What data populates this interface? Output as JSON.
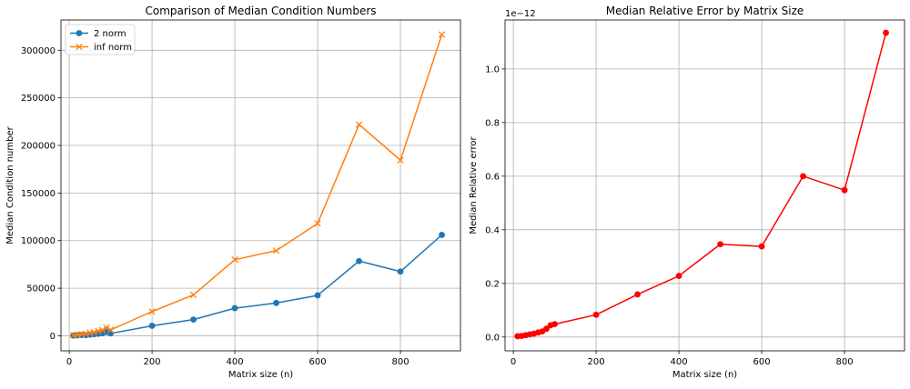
{
  "chart_data": [
    {
      "type": "line",
      "title": "Comparison of Median Condition Numbers",
      "xlabel": "Matrix size (n)",
      "ylabel": "Median Condition number",
      "xlim": [
        -20,
        945
      ],
      "ylim": [
        -15800,
        331800
      ],
      "xticks": [
        0,
        200,
        400,
        600,
        800
      ],
      "yticks": [
        0,
        50000,
        100000,
        150000,
        200000,
        250000,
        300000
      ],
      "ytick_labels": [
        "0",
        "50000",
        "100000",
        "150000",
        "200000",
        "250000",
        "300000"
      ],
      "grid": true,
      "legend": "top-left",
      "x": [
        10,
        20,
        30,
        40,
        50,
        60,
        70,
        80,
        90,
        100,
        200,
        300,
        400,
        500,
        600,
        700,
        800,
        900
      ],
      "series": [
        {
          "name": "2 norm",
          "marker": "circle",
          "color": "#1f77b4",
          "values": [
            200,
            500,
            800,
            700,
            1200,
            1600,
            2100,
            2600,
            4000,
            2500,
            10500,
            17000,
            29000,
            34500,
            42500,
            78500,
            67500,
            106000
          ]
        },
        {
          "name": "inf norm",
          "marker": "x",
          "color": "#ff7f0e",
          "values": [
            600,
            1000,
            1600,
            2000,
            3000,
            3800,
            5000,
            6000,
            8500,
            6200,
            25500,
            43000,
            80000,
            89500,
            118000,
            222000,
            184500,
            316500
          ]
        }
      ]
    },
    {
      "type": "line",
      "title": "Median Relative Error by Matrix Size",
      "xlabel": "Matrix size (n)",
      "ylabel": "Median Relative error",
      "offset_label": "1e−12",
      "xlim": [
        -20,
        945
      ],
      "ylim": [
        -0.0515,
        1.1826
      ],
      "xticks": [
        0,
        200,
        400,
        600,
        800
      ],
      "yticks": [
        0.0,
        0.2,
        0.4,
        0.6,
        0.8,
        1.0
      ],
      "ytick_labels": [
        "0.0",
        "0.2",
        "0.4",
        "0.6",
        "0.8",
        "1.0"
      ],
      "grid": true,
      "x": [
        10,
        20,
        30,
        40,
        50,
        60,
        70,
        80,
        90,
        100,
        200,
        300,
        400,
        500,
        600,
        700,
        800,
        900
      ],
      "series": [
        {
          "marker": "circle",
          "color": "#ff0000",
          "values": [
            0.003,
            0.004,
            0.007,
            0.01,
            0.013,
            0.017,
            0.021,
            0.031,
            0.044,
            0.048,
            0.083,
            0.159,
            0.228,
            0.346,
            0.338,
            0.6,
            0.548,
            1.135
          ]
        }
      ]
    }
  ]
}
